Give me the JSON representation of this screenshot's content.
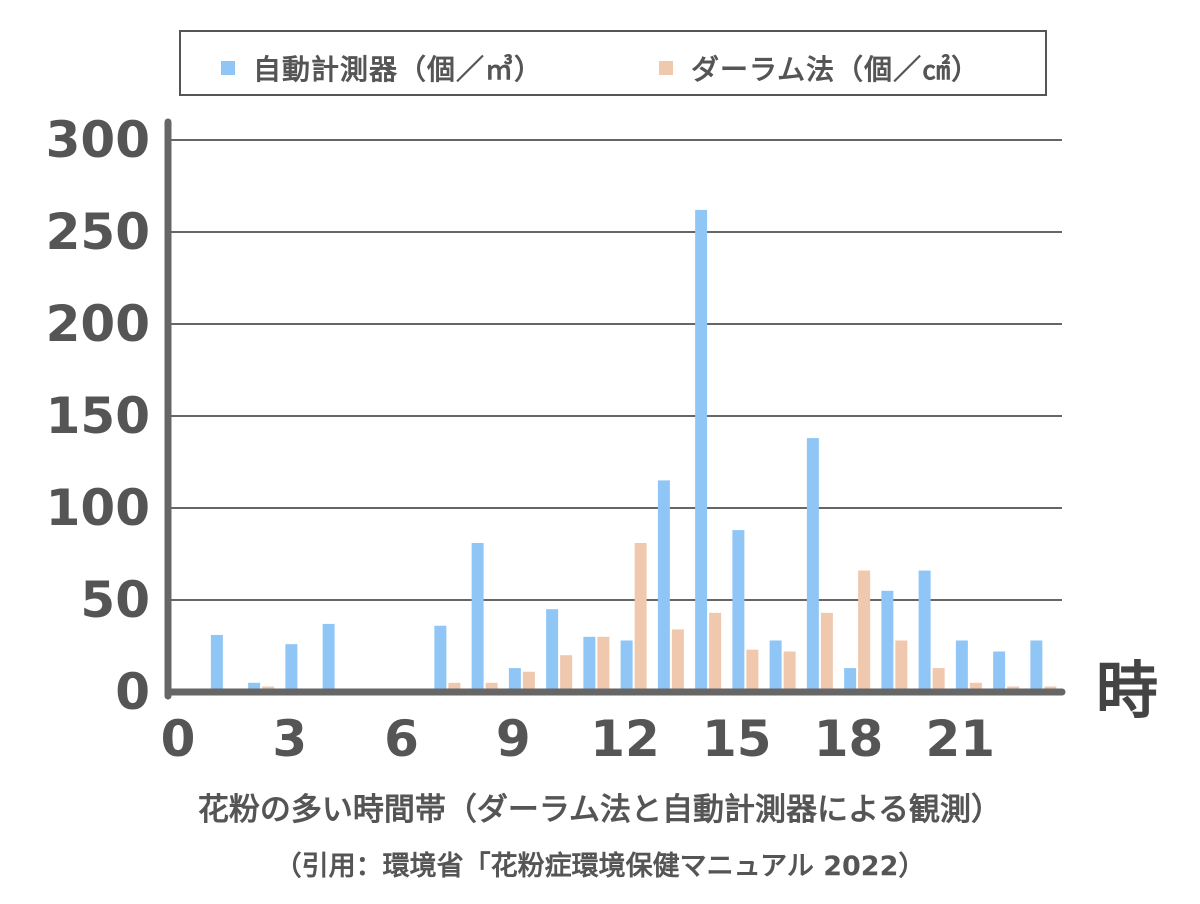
{
  "chart_data": {
    "type": "bar",
    "title": "",
    "xlabel": "時",
    "ylabel": "",
    "ylim": [
      0,
      300
    ],
    "yticks": [
      "0",
      "50",
      "100",
      "150",
      "200",
      "250",
      "300"
    ],
    "xticks": [
      {
        "hour": 0,
        "label": "0"
      },
      {
        "hour": 3,
        "label": "3"
      },
      {
        "hour": 6,
        "label": "6"
      },
      {
        "hour": 9,
        "label": "9"
      },
      {
        "hour": 12,
        "label": "12"
      },
      {
        "hour": 15,
        "label": "15"
      },
      {
        "hour": 18,
        "label": "18"
      },
      {
        "hour": 21,
        "label": "21"
      }
    ],
    "categories": [
      0,
      1,
      2,
      3,
      4,
      5,
      6,
      7,
      8,
      9,
      10,
      11,
      12,
      13,
      14,
      15,
      16,
      17,
      18,
      19,
      20,
      21,
      22,
      23
    ],
    "grid": true,
    "legend_position": "top",
    "series": [
      {
        "name": "自動計測器（個／㎥）",
        "color": "#90c6f5",
        "values": [
          0,
          31,
          5,
          26,
          37,
          0,
          0,
          36,
          81,
          13,
          45,
          30,
          28,
          115,
          262,
          88,
          28,
          138,
          13,
          55,
          66,
          28,
          22,
          28
        ]
      },
      {
        "name": "ダーラム法（個／㎠）",
        "color": "#efc8ad",
        "values": [
          0,
          0,
          3,
          0,
          0,
          0,
          0,
          5,
          5,
          11,
          20,
          30,
          81,
          34,
          43,
          23,
          22,
          43,
          66,
          28,
          13,
          5,
          3,
          3
        ]
      }
    ]
  },
  "captions": {
    "main": "花粉の多い時間帯（ダーラム法と自動計測器による観測）",
    "source": "（引用：環境省「花粉症環境保健マニュアル 2022）"
  }
}
